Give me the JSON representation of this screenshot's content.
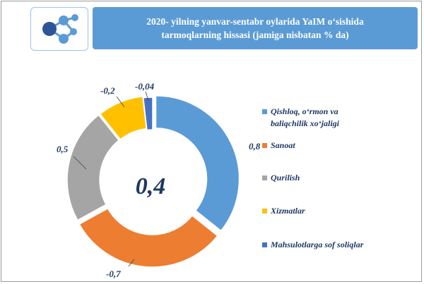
{
  "header": {
    "title": "2020- yilning yanvar-sentabr oylarida YaIM o‘sishida tarmoqlarning hissasi (jamiga nisbatan % da)"
  },
  "center_value": "0,4",
  "colors": {
    "banner": "#5b9bd5",
    "text": "#1f3864",
    "logo_dark": "#2e5597",
    "logo_light": "#5b9bd5"
  },
  "chart_data": {
    "type": "donut",
    "title": "2020- yilning yanvar-sentabr oylarida YaIM o‘sishida tarmoqlarning hissasi (jamiga nisbatan % da)",
    "center_label": "0,4",
    "slices": [
      {
        "name": "Qishloq, o‘rmon va baliqchilik xo‘jaligi",
        "value": 0.8,
        "label": "0,8",
        "color": "#5b9bd5"
      },
      {
        "name": "Sanoat",
        "value": -0.7,
        "label": "-0,7",
        "color": "#ed7d31"
      },
      {
        "name": "Qurilish",
        "value": 0.5,
        "label": "0,5",
        "color": "#a5a5a5"
      },
      {
        "name": "Xizmatlar",
        "value": -0.2,
        "label": "-0,2",
        "color": "#ffc000"
      },
      {
        "name": "Mahsulotlarga sof soliqlar",
        "value": -0.04,
        "label": "-0,04",
        "color": "#4472c4"
      }
    ],
    "legend_position": "right"
  }
}
